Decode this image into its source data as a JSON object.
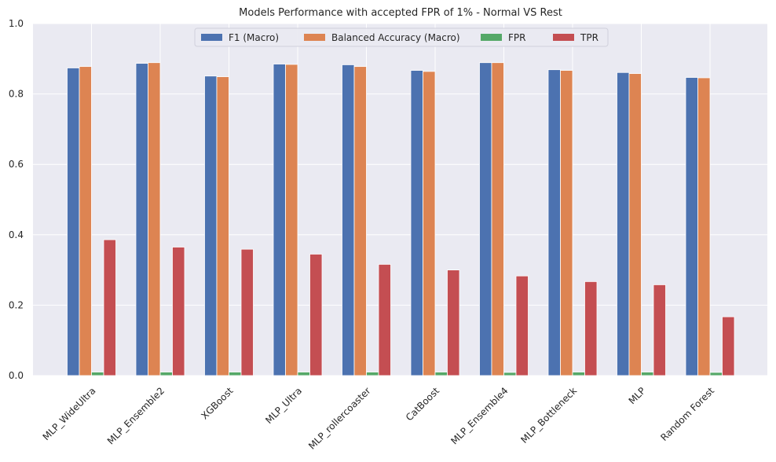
{
  "chart_data": {
    "type": "bar",
    "title": "Models Performance with accepted FPR of 1% - Normal VS Rest",
    "xlabel": "",
    "ylabel": "",
    "ylim": [
      0,
      1.0
    ],
    "yticks": [
      "0.0",
      "0.2",
      "0.4",
      "0.6",
      "0.8",
      "1.0"
    ],
    "grid": true,
    "legend_position": "top-center",
    "categories": [
      "MLP_WideUltra",
      "MLP_Ensemble2",
      "XGBoost",
      "MLP_Ultra",
      "MLP_rollercoaster",
      "CatBoost",
      "MLP_Ensemble4",
      "MLP_Bottleneck",
      "MLP",
      "Random Forest"
    ],
    "series": [
      {
        "name": "F1 (Macro)",
        "color": "#4c72b0",
        "values": [
          0.874,
          0.887,
          0.851,
          0.885,
          0.883,
          0.867,
          0.889,
          0.869,
          0.861,
          0.847
        ]
      },
      {
        "name": "Balanced Accuracy (Macro)",
        "color": "#dd8452",
        "values": [
          0.878,
          0.889,
          0.849,
          0.884,
          0.878,
          0.864,
          0.889,
          0.867,
          0.858,
          0.846
        ]
      },
      {
        "name": "FPR",
        "color": "#55a868",
        "values": [
          0.01,
          0.01,
          0.01,
          0.01,
          0.01,
          0.01,
          0.009,
          0.01,
          0.01,
          0.009
        ]
      },
      {
        "name": "TPR",
        "color": "#c44e52",
        "values": [
          0.386,
          0.365,
          0.359,
          0.345,
          0.316,
          0.3,
          0.283,
          0.267,
          0.258,
          0.167
        ]
      }
    ]
  }
}
